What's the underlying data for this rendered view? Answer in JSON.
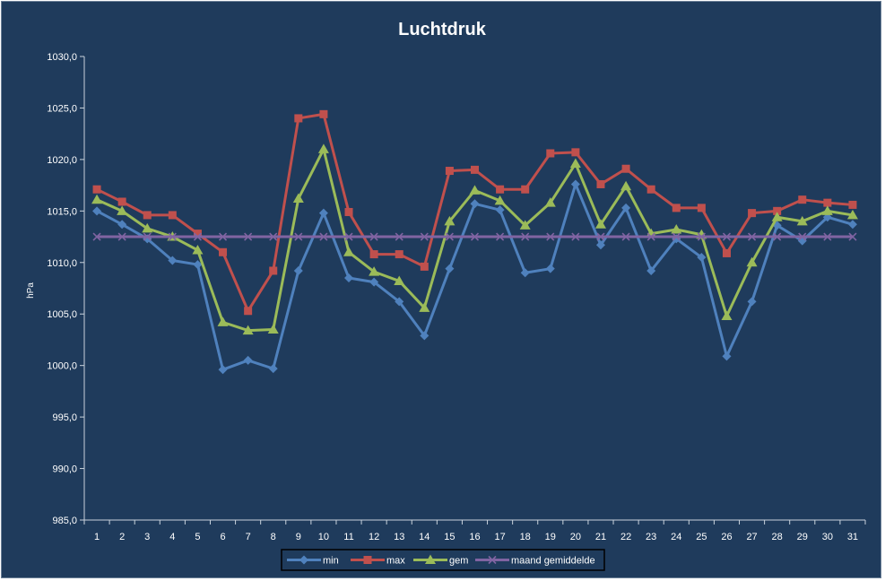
{
  "chart_data": {
    "type": "line",
    "title": "Luchtdruk",
    "ylabel": "hPa",
    "xlabel": "",
    "ylim": [
      985,
      1030
    ],
    "ytick_step": 5,
    "ytick_labels": [
      "985,0",
      "990,0",
      "995,0",
      "1000,0",
      "1005,0",
      "1010,0",
      "1015,0",
      "1020,0",
      "1025,0",
      "1030,0"
    ],
    "categories": [
      "1",
      "2",
      "3",
      "4",
      "5",
      "6",
      "7",
      "8",
      "9",
      "10",
      "11",
      "12",
      "13",
      "14",
      "15",
      "16",
      "17",
      "18",
      "19",
      "20",
      "21",
      "22",
      "23",
      "24",
      "25",
      "26",
      "27",
      "28",
      "29",
      "30",
      "31"
    ],
    "grid": false,
    "legend_position": "bottom",
    "series": [
      {
        "name": "min",
        "color": "#4f81bd",
        "marker": "diamond",
        "values": [
          1015.0,
          1013.7,
          1012.3,
          1010.2,
          1009.8,
          999.6,
          1000.5,
          999.7,
          1009.2,
          1014.8,
          1008.5,
          1008.1,
          1006.2,
          1002.9,
          1009.4,
          1015.7,
          1015.1,
          1009.0,
          1009.4,
          1017.6,
          1011.7,
          1015.3,
          1009.2,
          1012.3,
          1010.5,
          1000.9,
          1006.2,
          1013.6,
          1012.1,
          1014.4,
          1013.7
        ]
      },
      {
        "name": "max",
        "color": "#c0504d",
        "marker": "square",
        "values": [
          1017.1,
          1015.9,
          1014.6,
          1014.6,
          1012.8,
          1011.0,
          1005.3,
          1009.2,
          1024.0,
          1024.4,
          1014.9,
          1010.8,
          1010.8,
          1009.6,
          1018.9,
          1019.0,
          1017.1,
          1017.1,
          1020.6,
          1020.7,
          1017.6,
          1019.1,
          1017.1,
          1015.3,
          1015.3,
          1010.9,
          1014.8,
          1015.0,
          1016.1,
          1015.8,
          1015.6
        ]
      },
      {
        "name": "gem",
        "color": "#9bbb59",
        "marker": "triangle",
        "values": [
          1016.1,
          1015.0,
          1013.3,
          1012.5,
          1011.2,
          1004.2,
          1003.4,
          1003.5,
          1016.2,
          1021.0,
          1011.0,
          1009.1,
          1008.2,
          1005.6,
          1014.0,
          1017.0,
          1016.0,
          1013.6,
          1015.8,
          1019.6,
          1013.7,
          1017.4,
          1012.8,
          1013.2,
          1012.7,
          1004.8,
          1010.0,
          1014.4,
          1014.0,
          1015.0,
          1014.6
        ]
      },
      {
        "name": "maand gemiddelde",
        "color": "#8064a2",
        "marker": "x",
        "values": [
          1012.5,
          1012.5,
          1012.5,
          1012.5,
          1012.5,
          1012.5,
          1012.5,
          1012.5,
          1012.5,
          1012.5,
          1012.5,
          1012.5,
          1012.5,
          1012.5,
          1012.5,
          1012.5,
          1012.5,
          1012.5,
          1012.5,
          1012.5,
          1012.5,
          1012.5,
          1012.5,
          1012.5,
          1012.5,
          1012.5,
          1012.5,
          1012.5,
          1012.5,
          1012.5,
          1012.5
        ]
      }
    ]
  }
}
